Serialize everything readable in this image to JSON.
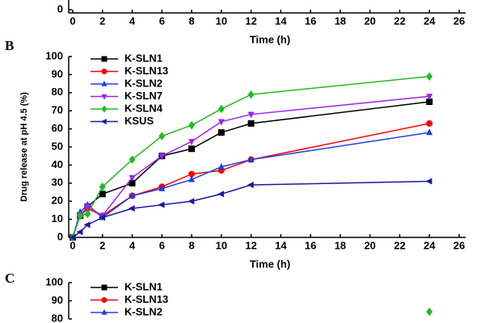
{
  "chart_data": [
    {
      "type": "line",
      "xlabel": "Time (h)",
      "xlim": [
        0,
        26
      ],
      "xticks": [
        0,
        2,
        4,
        6,
        8,
        10,
        12,
        14,
        16,
        18,
        20,
        22,
        24,
        26
      ],
      "yticks": [
        0
      ]
    },
    {
      "type": "line",
      "panel_label": "B",
      "xlabel": "Time (h)",
      "ylabel": "Drug release at pH 4.5 (%)",
      "xlim": [
        0,
        26
      ],
      "xticks": [
        0,
        2,
        4,
        6,
        8,
        10,
        12,
        14,
        16,
        18,
        20,
        22,
        24,
        26
      ],
      "ylim": [
        0,
        100
      ],
      "yticks": [
        0,
        10,
        20,
        30,
        40,
        50,
        60,
        70,
        80,
        90,
        100
      ],
      "x": [
        0,
        0.5,
        1,
        2,
        4,
        6,
        8,
        10,
        12,
        24
      ],
      "series": [
        {
          "name": "K-SLN1",
          "color": "#000000",
          "marker": "square",
          "values": [
            0,
            12,
            17,
            24,
            30,
            45,
            49,
            58,
            63,
            75
          ]
        },
        {
          "name": "K-SLN13",
          "color": "#ff0000",
          "marker": "circle",
          "values": [
            0,
            12,
            16,
            12,
            23,
            28,
            35,
            37,
            43,
            63
          ]
        },
        {
          "name": "K-SLN2",
          "color": "#2040e0",
          "marker": "triangle-up",
          "values": [
            0,
            14,
            18,
            11,
            23,
            27,
            32,
            39,
            43,
            58
          ]
        },
        {
          "name": "K-SLN7",
          "color": "#a020f0",
          "marker": "triangle-down",
          "values": [
            0,
            12,
            17,
            12,
            33,
            45,
            53,
            64,
            68,
            78
          ]
        },
        {
          "name": "K-SLN4",
          "color": "#22bb22",
          "marker": "diamond",
          "values": [
            0,
            12,
            13,
            28,
            43,
            56,
            62,
            71,
            79,
            89
          ]
        },
        {
          "name": "KSUS",
          "color": "#1a1aa0",
          "marker": "triangle-left",
          "values": [
            0,
            3,
            7,
            11,
            16,
            18,
            20,
            24,
            29,
            31
          ]
        }
      ]
    },
    {
      "type": "line",
      "panel_label": "C",
      "xlim": [
        0,
        26
      ],
      "ylim": [
        80,
        100
      ],
      "yticks": [
        100,
        90,
        80
      ],
      "x": [
        24
      ],
      "series": [
        {
          "name": "K-SLN1",
          "color": "#000000",
          "marker": "square",
          "values": [
            null
          ]
        },
        {
          "name": "K-SLN13",
          "color": "#ff0000",
          "marker": "circle",
          "values": [
            null
          ]
        },
        {
          "name": "K-SLN2",
          "color": "#2040e0",
          "marker": "triangle-up",
          "values": [
            null
          ]
        },
        {
          "color": "#22bb22",
          "marker": "diamond",
          "values": [
            84
          ]
        }
      ]
    }
  ]
}
